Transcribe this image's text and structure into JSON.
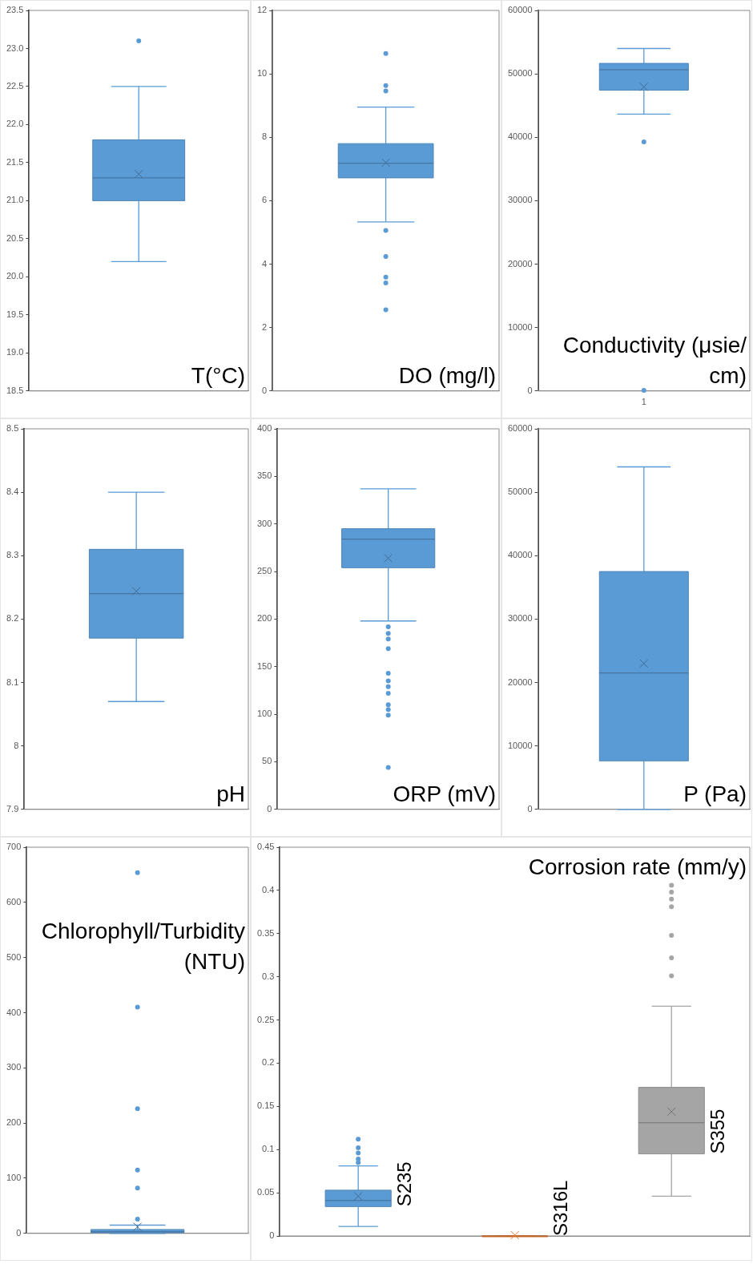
{
  "chart_data": [
    {
      "type": "box",
      "title": "T(°C)",
      "categories": [
        null
      ],
      "color": "#5b9bd5",
      "ylim": [
        18.5,
        23.5
      ],
      "yticks": [
        18.5,
        {
          "value": 19,
          "label": "19.0"
        },
        19.5,
        {
          "value": 20,
          "label": "20.0"
        },
        20.5,
        {
          "value": 21,
          "label": "21.0"
        },
        21.5,
        {
          "value": 22,
          "label": "22.0"
        },
        22.5,
        {
          "value": 23,
          "label": "23.0"
        },
        23.5
      ],
      "boxes": [
        {
          "low": 20.2,
          "q1": 21.0,
          "median": 21.3,
          "q3": 21.8,
          "high": 22.5,
          "mean": 21.35,
          "outliers": [
            23.1
          ]
        }
      ]
    },
    {
      "type": "box",
      "title": "DO (mg/l)",
      "categories": [
        null
      ],
      "color": "#5b9bd5",
      "ylim": [
        0,
        12
      ],
      "yticks": [
        0,
        2,
        4,
        6,
        8,
        10,
        12
      ],
      "boxes": [
        {
          "low": 5.33,
          "q1": 6.72,
          "median": 7.18,
          "q3": 7.8,
          "high": 8.95,
          "mean": 7.2,
          "outliers": [
            10.64,
            9.63,
            9.46,
            5.06,
            4.24,
            3.59,
            3.41,
            2.56
          ]
        }
      ]
    },
    {
      "type": "box",
      "title": "Conductivity (μsie/cm)",
      "categories": [
        "1"
      ],
      "color": "#5b9bd5",
      "ylim": [
        0,
        60000
      ],
      "yticks": [
        0,
        10000,
        20000,
        30000,
        40000,
        50000,
        60000
      ],
      "boxes": [
        {
          "low": 43650,
          "q1": 47430,
          "median": 50650,
          "q3": 51650,
          "high": 54000,
          "mean": 47950,
          "outliers": [
            39270,
            100
          ]
        }
      ]
    },
    {
      "type": "box",
      "title": "pH",
      "categories": [
        null
      ],
      "color": "#5b9bd5",
      "ylim": [
        7.9,
        8.5
      ],
      "yticks": [
        7.9,
        8,
        8.1,
        8.2,
        8.3,
        8.4,
        8.5
      ],
      "boxes": [
        {
          "low": 8.07,
          "q1": 8.17,
          "median": 8.24,
          "q3": 8.31,
          "high": 8.4,
          "mean": 8.244
        }
      ]
    },
    {
      "type": "box",
      "title": "ORP (mV)",
      "categories": [
        null
      ],
      "color": "#5b9bd5",
      "ylim": [
        0,
        400
      ],
      "yticks": [
        0,
        50,
        100,
        150,
        200,
        250,
        300,
        350,
        400
      ],
      "boxes": [
        {
          "low": 198,
          "q1": 254,
          "median": 284,
          "q3": 295,
          "high": 337,
          "mean": 264,
          "outliers": [
            192,
            185,
            179,
            169,
            143,
            135,
            129,
            122,
            110,
            105,
            99,
            44
          ]
        }
      ]
    },
    {
      "type": "box",
      "title": "P (Pa)",
      "categories": [
        null
      ],
      "color": "#5b9bd5",
      "ylim": [
        0,
        60000
      ],
      "yticks": [
        0,
        10000,
        20000,
        30000,
        40000,
        50000,
        60000
      ],
      "boxes": [
        {
          "low": 0,
          "q1": 7650,
          "median": 21500,
          "q3": 37500,
          "high": 54000,
          "mean": 23000
        }
      ]
    },
    {
      "type": "box",
      "title": "Chlorophyll/Turbidity (NTU)",
      "categories": [
        null
      ],
      "color": "#5b9bd5",
      "ylim": [
        0,
        700
      ],
      "yticks": [
        0,
        100,
        200,
        300,
        400,
        500,
        600,
        700
      ],
      "boxes": [
        {
          "low": 0,
          "q1": 1,
          "median": 3,
          "q3": 7,
          "high": 15,
          "mean": 12,
          "outliers": [
            654,
            410,
            226,
            115,
            82,
            26
          ]
        }
      ]
    },
    {
      "type": "box",
      "title": "Corrosion rate (mm/y)",
      "categories": [
        "S235",
        "S316L",
        "S355"
      ],
      "colors": [
        "#5b9bd5",
        "#ed7d31",
        "#a5a5a5"
      ],
      "ylim": [
        0,
        0.45
      ],
      "yticks": [
        0,
        0.05,
        0.1,
        0.15,
        0.2,
        0.25,
        0.3,
        0.35,
        0.4,
        0.45
      ],
      "boxes": [
        {
          "low": 0.011,
          "q1": 0.034,
          "median": 0.041,
          "q3": 0.053,
          "high": 0.081,
          "mean": 0.046,
          "outliers": [
            0.112,
            0.102,
            0.096,
            0.089,
            0.085
          ]
        },
        {
          "low": 0,
          "q1": 0,
          "median": 0,
          "q3": 0,
          "high": 0,
          "mean": 0.001
        },
        {
          "low": 0.046,
          "q1": 0.095,
          "median": 0.131,
          "q3": 0.172,
          "high": 0.266,
          "mean": 0.144,
          "outliers": [
            0.406,
            0.398,
            0.39,
            0.381,
            0.348,
            0.322,
            0.301
          ]
        }
      ]
    }
  ]
}
